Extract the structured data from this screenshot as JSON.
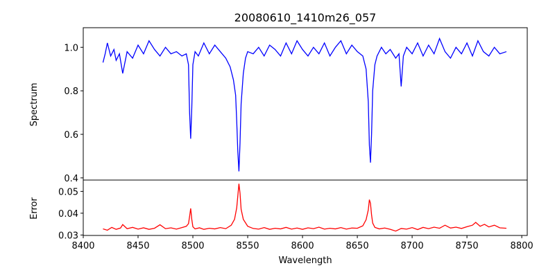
{
  "figure": {
    "title": "20080610_1410m26_057"
  },
  "chart_data": [
    {
      "type": "line",
      "panel": "spectrum",
      "title": "20080610_1410m26_057",
      "xlabel": "",
      "ylabel": "Spectrum",
      "xlim": [
        8400,
        8805
      ],
      "ylim": [
        0.39,
        1.09
      ],
      "xticks": [],
      "yticks": [
        0.4,
        0.6,
        0.8,
        1.0
      ],
      "ytick_labels": [
        "0.4",
        "0.6",
        "0.8",
        "1.0"
      ],
      "grid": false,
      "series": [
        {
          "color": "#0000ff",
          "x": [
            8418,
            8420,
            8422,
            8425,
            8428,
            8430,
            8433,
            8436,
            8440,
            8445,
            8450,
            8455,
            8460,
            8465,
            8470,
            8475,
            8480,
            8485,
            8490,
            8494,
            8496,
            8497,
            8498,
            8499,
            8500,
            8502,
            8505,
            8510,
            8515,
            8520,
            8525,
            8530,
            8534,
            8537,
            8539,
            8540,
            8541,
            8542,
            8543,
            8544,
            8546,
            8548,
            8550,
            8555,
            8560,
            8565,
            8570,
            8575,
            8580,
            8585,
            8590,
            8595,
            8600,
            8605,
            8610,
            8615,
            8620,
            8625,
            8630,
            8635,
            8640,
            8645,
            8650,
            8655,
            8658,
            8660,
            8661,
            8662,
            8663,
            8664,
            8666,
            8668,
            8672,
            8676,
            8680,
            8685,
            8688,
            8690,
            8692,
            8695,
            8700,
            8705,
            8710,
            8715,
            8720,
            8725,
            8730,
            8735,
            8740,
            8745,
            8750,
            8755,
            8760,
            8765,
            8770,
            8775,
            8780,
            8786
          ],
          "y": [
            0.93,
            0.97,
            1.02,
            0.96,
            0.99,
            0.94,
            0.97,
            0.88,
            0.98,
            0.95,
            1.01,
            0.97,
            1.03,
            0.99,
            0.96,
            1.0,
            0.97,
            0.98,
            0.96,
            0.97,
            0.92,
            0.7,
            0.58,
            0.72,
            0.92,
            0.98,
            0.96,
            1.02,
            0.97,
            1.01,
            0.98,
            0.95,
            0.91,
            0.85,
            0.78,
            0.66,
            0.52,
            0.43,
            0.56,
            0.74,
            0.88,
            0.95,
            0.98,
            0.97,
            1.0,
            0.96,
            1.01,
            0.99,
            0.96,
            1.02,
            0.97,
            1.03,
            0.99,
            0.96,
            1.0,
            0.97,
            1.02,
            0.96,
            1.0,
            1.03,
            0.97,
            1.01,
            0.98,
            0.96,
            0.9,
            0.75,
            0.55,
            0.47,
            0.6,
            0.8,
            0.92,
            0.96,
            1.0,
            0.97,
            0.99,
            0.95,
            0.97,
            0.82,
            0.96,
            1.0,
            0.97,
            1.02,
            0.96,
            1.01,
            0.97,
            1.04,
            0.98,
            0.95,
            1.0,
            0.97,
            1.02,
            0.96,
            1.03,
            0.98,
            0.96,
            1.0,
            0.97,
            0.98
          ]
        }
      ]
    },
    {
      "type": "line",
      "panel": "error",
      "title": "",
      "xlabel": "Wavelength",
      "ylabel": "Error",
      "xlim": [
        8400,
        8805
      ],
      "ylim": [
        0.0298,
        0.0552
      ],
      "xticks": [
        8400,
        8450,
        8500,
        8550,
        8600,
        8650,
        8700,
        8750,
        8800
      ],
      "xtick_labels": [
        "8400",
        "8450",
        "8500",
        "8550",
        "8600",
        "8650",
        "8700",
        "8750",
        "8800"
      ],
      "yticks": [
        0.03,
        0.04,
        0.05
      ],
      "ytick_labels": [
        "0.03",
        "0.04",
        "0.05"
      ],
      "grid": false,
      "series": [
        {
          "color": "#ff0000",
          "x": [
            8418,
            8422,
            8426,
            8430,
            8434,
            8436,
            8440,
            8445,
            8450,
            8455,
            8460,
            8465,
            8470,
            8475,
            8480,
            8485,
            8490,
            8494,
            8496,
            8497,
            8498,
            8499,
            8500,
            8502,
            8506,
            8510,
            8515,
            8520,
            8525,
            8530,
            8535,
            8538,
            8540,
            8541,
            8542,
            8543,
            8544,
            8546,
            8550,
            8555,
            8560,
            8565,
            8570,
            8575,
            8580,
            8585,
            8590,
            8595,
            8600,
            8605,
            8610,
            8615,
            8620,
            8625,
            8630,
            8635,
            8640,
            8645,
            8650,
            8655,
            8658,
            8660,
            8661,
            8662,
            8663,
            8664,
            8666,
            8670,
            8675,
            8680,
            8685,
            8690,
            8695,
            8700,
            8705,
            8710,
            8715,
            8720,
            8725,
            8730,
            8735,
            8740,
            8745,
            8750,
            8755,
            8758,
            8762,
            8766,
            8770,
            8775,
            8780,
            8786
          ],
          "y": [
            0.0328,
            0.0322,
            0.0335,
            0.0326,
            0.0332,
            0.0348,
            0.0329,
            0.0335,
            0.0327,
            0.0333,
            0.0326,
            0.0331,
            0.0347,
            0.0329,
            0.0333,
            0.0327,
            0.0334,
            0.034,
            0.0352,
            0.0385,
            0.0422,
            0.0372,
            0.0338,
            0.0328,
            0.0333,
            0.0326,
            0.0331,
            0.0328,
            0.0334,
            0.0329,
            0.0345,
            0.0372,
            0.0425,
            0.048,
            0.0535,
            0.0492,
            0.0418,
            0.0372,
            0.034,
            0.033,
            0.0327,
            0.0334,
            0.0326,
            0.0331,
            0.0328,
            0.0335,
            0.0327,
            0.0332,
            0.0326,
            0.0333,
            0.0329,
            0.0336,
            0.0327,
            0.0331,
            0.0328,
            0.0334,
            0.0327,
            0.0332,
            0.0331,
            0.0342,
            0.037,
            0.0415,
            0.0462,
            0.0445,
            0.0392,
            0.0355,
            0.0335,
            0.0328,
            0.0332,
            0.0326,
            0.0318,
            0.033,
            0.0327,
            0.0334,
            0.0325,
            0.0335,
            0.0329,
            0.0336,
            0.0331,
            0.0345,
            0.0332,
            0.0336,
            0.033,
            0.0338,
            0.0345,
            0.0358,
            0.034,
            0.0349,
            0.0337,
            0.0345,
            0.0333,
            0.0331
          ]
        }
      ]
    }
  ]
}
